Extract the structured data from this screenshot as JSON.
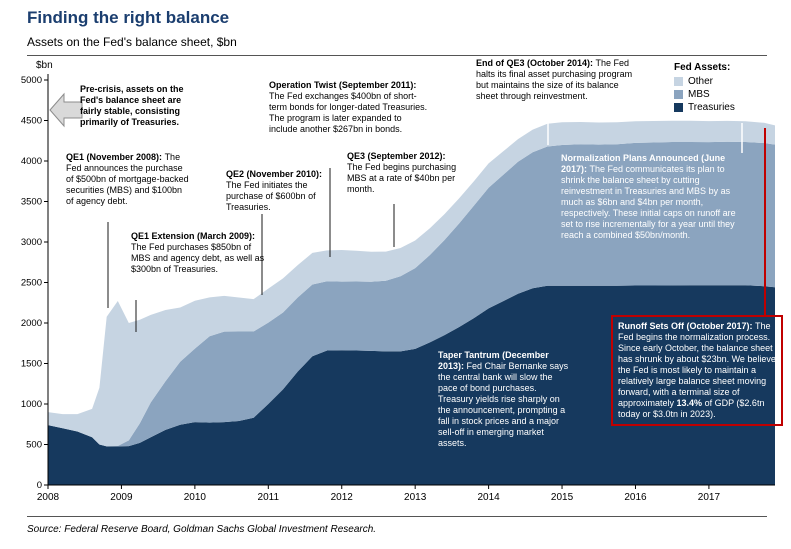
{
  "source": "Source: Federal Reserve Board, Goldman Sachs Global Investment Research.",
  "chart_data": {
    "type": "area",
    "stacked": true,
    "title": "Finding the right balance",
    "subtitle": "Assets on the Fed's balance sheet, $bn",
    "ylabel": "$bn",
    "ylim": [
      0,
      5000
    ],
    "ytick_step": 500,
    "grid": false,
    "legend_position": "top-right",
    "legend_title": "Fed Assets:",
    "legend_order": [
      "Other",
      "MBS",
      "Treasuries"
    ],
    "xticks": [
      2008,
      2009,
      2010,
      2011,
      2012,
      2013,
      2014,
      2015,
      2016,
      2017
    ],
    "x": [
      2008.0,
      2008.2,
      2008.4,
      2008.6,
      2008.7,
      2008.8,
      2008.95,
      2009.1,
      2009.25,
      2009.4,
      2009.6,
      2009.8,
      2010.0,
      2010.2,
      2010.4,
      2010.6,
      2010.8,
      2011.0,
      2011.2,
      2011.4,
      2011.6,
      2011.8,
      2012.0,
      2012.2,
      2012.4,
      2012.6,
      2012.8,
      2013.0,
      2013.2,
      2013.4,
      2013.6,
      2013.8,
      2014.0,
      2014.2,
      2014.4,
      2014.6,
      2014.8,
      2015.0,
      2015.25,
      2015.5,
      2015.75,
      2016.0,
      2016.25,
      2016.5,
      2016.75,
      2017.0,
      2017.25,
      2017.5,
      2017.75,
      2017.9
    ],
    "series": [
      {
        "name": "Treasuries",
        "color": "#16395e",
        "values": [
          740,
          700,
          660,
          590,
          500,
          476,
          476,
          480,
          520,
          590,
          680,
          745,
          776,
          770,
          777,
          790,
          830,
          1000,
          1180,
          1400,
          1590,
          1660,
          1663,
          1660,
          1655,
          1650,
          1650,
          1680,
          1760,
          1850,
          1950,
          2060,
          2180,
          2270,
          2360,
          2430,
          2461,
          2461,
          2461,
          2461,
          2461,
          2463,
          2463,
          2464,
          2465,
          2465,
          2465,
          2465,
          2454,
          2442
        ]
      },
      {
        "name": "MBS",
        "color": "#8ba4bf",
        "values": [
          0,
          0,
          0,
          0,
          0,
          0,
          5,
          70,
          240,
          430,
          600,
          776,
          908,
          1066,
          1117,
          1105,
          1065,
          1005,
          950,
          915,
          885,
          856,
          848,
          852,
          855,
          872,
          926,
          998,
          1080,
          1175,
          1280,
          1390,
          1490,
          1560,
          1630,
          1678,
          1718,
          1737,
          1745,
          1742,
          1747,
          1760,
          1765,
          1770,
          1769,
          1768,
          1772,
          1770,
          1768,
          1760
        ]
      },
      {
        "name": "Other",
        "color": "#c6d4e2",
        "values": [
          160,
          175,
          215,
          350,
          700,
          1600,
          1790,
          1450,
          1280,
          1080,
          880,
          670,
          590,
          480,
          440,
          420,
          400,
          420,
          420,
          400,
          390,
          380,
          390,
          380,
          370,
          360,
          350,
          340,
          330,
          320,
          310,
          300,
          300,
          290,
          280,
          280,
          280,
          280,
          275,
          272,
          270,
          268,
          266,
          264,
          262,
          260,
          258,
          255,
          250,
          238
        ]
      }
    ]
  },
  "annotations": {
    "pre_crisis": {
      "text": "Pre-crisis, assets on the Fed's balance sheet are fairly stable, consisting primarily of Treasuries."
    },
    "qe1": {
      "header": "QE1 (November 2008):",
      "body": "The Fed announces the purchase of $500bn of mortgage-backed securities (MBS) and $100bn of agency debt."
    },
    "qe1_extension": {
      "header": "QE1 Extension (March 2009):",
      "body": "The Fed purchases $850bn of MBS and agency debt, as well as $300bn of Treasuries."
    },
    "qe2": {
      "header": "QE2 (November 2010):",
      "body": "The Fed initiates the purchase of $600bn of Treasuries."
    },
    "operation_twist": {
      "header": "Operation Twist (September 2011):",
      "body": "The Fed exchanges $400bn of short-term bonds for longer-dated Treasuries. The program is later expanded to include another $267bn in bonds."
    },
    "qe3": {
      "header": "QE3 (September 2012):",
      "body": "The Fed begins purchasing MBS at a rate of $40bn per month."
    },
    "end_of_qe3": {
      "header": "End of QE3 (October 2014):",
      "body": "The Fed halts its final asset purchasing program but maintains the size of its balance sheet through reinvestment."
    },
    "normalization": {
      "header": "Normalization Plans Announced (June 2017):",
      "body": "The Fed communicates its plan to shrink the balance sheet by cutting reinvestment in Treasuries and MBS by as much as $6bn and $4bn per month, respectively. These initial caps on runoff are set to rise incrementally for a year until they reach a combined $50bn/month."
    },
    "taper_tantrum": {
      "header": "Taper Tantrum (December 2013):",
      "body": "Fed Chair Bernanke says the central bank will slow the pace of bond purchases. Treasury yields rise sharply on the announcement, prompting a fall in stock prices and a major sell-off in emerging market assets."
    },
    "runoff": {
      "header": "Runoff Sets Off (October 2017):",
      "body_start": "The Fed begins the normalization process. Since early October, the balance sheet has shrunk by about $23bn. We believe the Fed is most likely to maintain a relatively large balance sheet moving forward, with a terminal size of approximately ",
      "highlight": "13.4%",
      "body_end": " of GDP ($2.6tn today or $3.0tn in 2023)."
    }
  }
}
